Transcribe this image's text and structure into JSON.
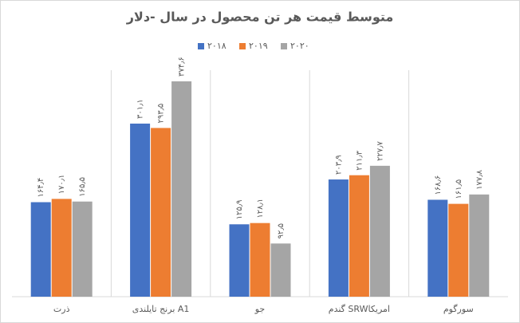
{
  "chart_data": {
    "type": "bar",
    "title": "متوسط قیمت هر تن محصول در سال -دلار",
    "categories": [
      "ذرت",
      "برنج تایلندی A1",
      "جو",
      "گندم SRWامریکا",
      "سورگوم"
    ],
    "series": [
      {
        "name": "۲۰۱۸",
        "color": "#4472c4",
        "values": [
          164.4,
          301.1,
          125.9,
          203.9,
          168.6
        ],
        "value_labels": [
          "۱۶۴٫۴",
          "۳۰۱٫۱",
          "۱۲۵٫۹",
          "۲۰۳٫۹",
          "۱۶۸٫۶"
        ]
      },
      {
        "name": "۲۰۱۹",
        "color": "#ed7d31",
        "values": [
          170.1,
          293.5,
          128.1,
          211.3,
          161.5
        ],
        "value_labels": [
          "۱۷۰٫۱",
          "۲۹۳٫۵",
          "۱۲۸٫۱",
          "۲۱۱٫۳",
          "۱۶۱٫۵"
        ]
      },
      {
        "name": "۲۰۲۰",
        "color": "#a5a5a5",
        "values": [
          165.5,
          374.6,
          92.5,
          227.7,
          177.8
        ],
        "value_labels": [
          "۱۶۵٫۵",
          "۳۷۴٫۶",
          "۹۲٫۵",
          "۲۲۷٫۷",
          "۱۷۷٫۸"
        ]
      }
    ],
    "legend": "top"
  }
}
